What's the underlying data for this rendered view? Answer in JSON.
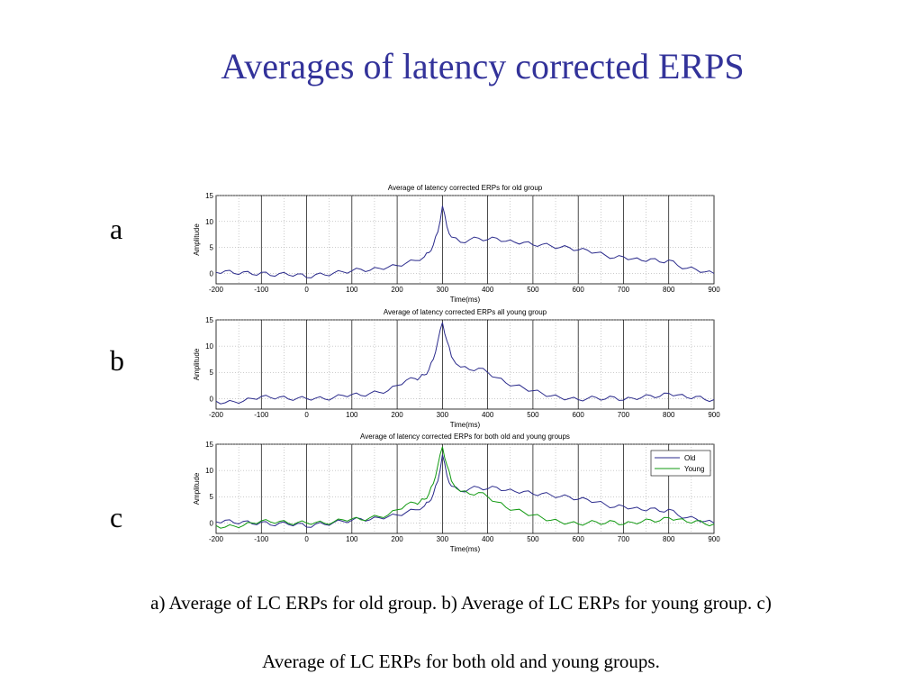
{
  "slide": {
    "title": "Averages of latency corrected ERPS",
    "caption_line1": "a) Average of LC ERPs for old group. b) Average of LC ERPs for young group. c)",
    "caption_line2": "Average of LC ERPs for both old and young groups."
  },
  "panel_letters": [
    "a",
    "b",
    "c"
  ],
  "colors": {
    "old": "#2b2b8c",
    "young": "#119911",
    "title": "#33339a"
  },
  "chart_data": [
    {
      "type": "line",
      "title": "Average of latency corrected ERPs for old group",
      "xlabel": "Time(ms)",
      "ylabel": "Amplitude",
      "xlim": [
        -200,
        900
      ],
      "ylim": [
        -2,
        15
      ],
      "xticks": [
        -200,
        -100,
        0,
        100,
        200,
        300,
        400,
        500,
        600,
        700,
        800,
        900
      ],
      "yticks": [
        0,
        5,
        10,
        15
      ],
      "grid": true,
      "legend": "none",
      "series": [
        {
          "color_key": "old",
          "x": [
            -200,
            -180,
            -160,
            -140,
            -120,
            -100,
            -80,
            -60,
            -40,
            -20,
            0,
            20,
            40,
            60,
            80,
            100,
            120,
            140,
            160,
            180,
            200,
            220,
            240,
            260,
            270,
            280,
            290,
            300,
            310,
            320,
            340,
            360,
            380,
            400,
            420,
            440,
            460,
            480,
            500,
            520,
            540,
            560,
            580,
            600,
            620,
            640,
            660,
            680,
            700,
            720,
            740,
            760,
            780,
            800,
            820,
            840,
            860,
            880,
            900
          ],
          "y": [
            0.2,
            0.5,
            0.0,
            0.3,
            -0.2,
            0.2,
            -0.4,
            0.0,
            -0.3,
            -0.1,
            -0.8,
            -0.2,
            -0.3,
            0.1,
            0.3,
            0.5,
            0.8,
            0.6,
            1.0,
            1.2,
            1.5,
            2.0,
            2.5,
            3.2,
            4.0,
            5.5,
            8.0,
            13.0,
            9.0,
            7.0,
            6.0,
            6.5,
            6.8,
            6.5,
            6.8,
            6.2,
            6.0,
            6.0,
            5.5,
            5.6,
            5.3,
            5.0,
            5.0,
            4.5,
            4.5,
            4.0,
            3.5,
            3.0,
            3.2,
            2.8,
            2.5,
            2.8,
            2.2,
            2.6,
            1.5,
            1.0,
            0.8,
            0.3,
            0.0
          ]
        }
      ]
    },
    {
      "type": "line",
      "title": "Average of latency corrected ERPs all young group",
      "xlabel": "Time(ms)",
      "ylabel": "Amplitude",
      "xlim": [
        -200,
        900
      ],
      "ylim": [
        -2,
        15
      ],
      "xticks": [
        -200,
        -100,
        0,
        100,
        200,
        300,
        400,
        500,
        600,
        700,
        800,
        900
      ],
      "yticks": [
        0,
        5,
        10,
        15
      ],
      "grid": true,
      "legend": "none",
      "series": [
        {
          "color_key": "old",
          "x": [
            -200,
            -180,
            -160,
            -140,
            -120,
            -100,
            -80,
            -60,
            -40,
            -20,
            0,
            20,
            40,
            60,
            80,
            100,
            120,
            140,
            160,
            180,
            200,
            220,
            240,
            250,
            260,
            270,
            280,
            290,
            300,
            310,
            320,
            340,
            360,
            380,
            400,
            420,
            440,
            460,
            480,
            500,
            520,
            540,
            560,
            580,
            600,
            620,
            640,
            660,
            680,
            700,
            720,
            740,
            760,
            780,
            800,
            820,
            840,
            860,
            880,
            900
          ],
          "y": [
            -0.5,
            -0.8,
            -0.6,
            -0.5,
            0.0,
            0.4,
            0.2,
            0.3,
            -0.1,
            0.1,
            0.0,
            0.1,
            -0.1,
            0.2,
            0.6,
            0.8,
            0.6,
            1.0,
            1.2,
            1.5,
            2.5,
            3.5,
            3.8,
            4.0,
            4.5,
            5.5,
            7.5,
            11.0,
            14.5,
            11.0,
            8.0,
            6.0,
            5.5,
            5.8,
            5.0,
            4.0,
            3.0,
            2.5,
            2.0,
            1.5,
            1.0,
            0.5,
            0.2,
            0.0,
            -0.2,
            0.0,
            0.2,
            -0.1,
            0.3,
            -0.3,
            0.1,
            0.2,
            0.6,
            0.4,
            1.0,
            0.7,
            0.2,
            0.4,
            -0.2,
            -0.2
          ]
        }
      ]
    },
    {
      "type": "line",
      "title": "Average of latency corrected ERPs for both old and young groups",
      "xlabel": "Time(ms)",
      "ylabel": "Amplitude",
      "xlim": [
        -200,
        900
      ],
      "ylim": [
        -2,
        15
      ],
      "xticks": [
        -200,
        -100,
        0,
        100,
        200,
        300,
        400,
        500,
        600,
        700,
        800,
        900
      ],
      "yticks": [
        0,
        5,
        10,
        15
      ],
      "grid": true,
      "legend": "top-right",
      "series": [
        {
          "name": "Old",
          "color_key": "old",
          "x": [
            -200,
            -180,
            -160,
            -140,
            -120,
            -100,
            -80,
            -60,
            -40,
            -20,
            0,
            20,
            40,
            60,
            80,
            100,
            120,
            140,
            160,
            180,
            200,
            220,
            240,
            260,
            270,
            280,
            290,
            300,
            310,
            320,
            340,
            360,
            380,
            400,
            420,
            440,
            460,
            480,
            500,
            520,
            540,
            560,
            580,
            600,
            620,
            640,
            660,
            680,
            700,
            720,
            740,
            760,
            780,
            800,
            820,
            840,
            860,
            880,
            900
          ],
          "y": [
            0.2,
            0.5,
            0.0,
            0.3,
            -0.2,
            0.2,
            -0.4,
            0.0,
            -0.3,
            -0.1,
            -0.8,
            -0.2,
            -0.3,
            0.1,
            0.3,
            0.5,
            0.8,
            0.6,
            1.0,
            1.2,
            1.5,
            2.0,
            2.5,
            3.2,
            4.0,
            5.5,
            8.0,
            13.0,
            9.0,
            7.0,
            6.0,
            6.5,
            6.8,
            6.5,
            6.8,
            6.2,
            6.0,
            6.0,
            5.5,
            5.6,
            5.3,
            5.0,
            5.0,
            4.5,
            4.5,
            4.0,
            3.5,
            3.0,
            3.2,
            2.8,
            2.5,
            2.8,
            2.2,
            2.6,
            1.5,
            1.0,
            0.8,
            0.3,
            0.0
          ]
        },
        {
          "name": "Young",
          "color_key": "young",
          "x": [
            -200,
            -180,
            -160,
            -140,
            -120,
            -100,
            -80,
            -60,
            -40,
            -20,
            0,
            20,
            40,
            60,
            80,
            100,
            120,
            140,
            160,
            180,
            200,
            220,
            240,
            250,
            260,
            270,
            280,
            290,
            300,
            310,
            320,
            340,
            360,
            380,
            400,
            420,
            440,
            460,
            480,
            500,
            520,
            540,
            560,
            580,
            600,
            620,
            640,
            660,
            680,
            700,
            720,
            740,
            760,
            780,
            800,
            820,
            840,
            860,
            880,
            900
          ],
          "y": [
            -0.5,
            -0.8,
            -0.6,
            -0.5,
            0.0,
            0.4,
            0.2,
            0.3,
            -0.1,
            0.1,
            0.0,
            0.1,
            -0.1,
            0.2,
            0.6,
            0.8,
            0.6,
            1.0,
            1.2,
            1.5,
            2.5,
            3.5,
            3.8,
            4.0,
            4.5,
            5.5,
            7.5,
            11.0,
            14.5,
            11.0,
            8.0,
            6.0,
            5.5,
            5.8,
            5.0,
            4.0,
            3.0,
            2.5,
            2.0,
            1.5,
            1.0,
            0.5,
            0.2,
            0.0,
            -0.2,
            0.0,
            0.2,
            -0.1,
            0.3,
            -0.3,
            0.1,
            0.2,
            0.6,
            0.4,
            1.0,
            0.7,
            0.2,
            0.4,
            -0.2,
            -0.2
          ]
        }
      ]
    }
  ]
}
